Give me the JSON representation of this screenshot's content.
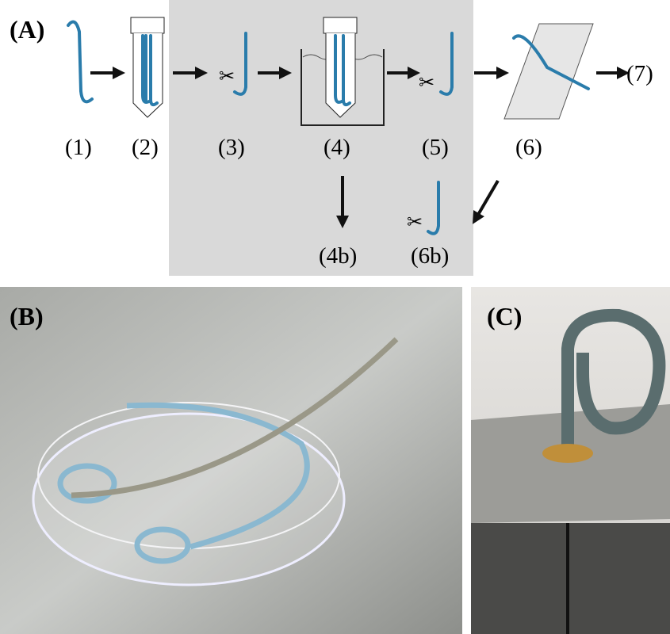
{
  "panels": {
    "a": {
      "label": "(A)",
      "steps": [
        "(1)",
        "(2)",
        "(3)",
        "(4)",
        "(5)",
        "(6)"
      ],
      "next": "(7)",
      "branches": [
        "(4b)",
        "(6b)"
      ]
    },
    "b": {
      "label": "(B)"
    },
    "c": {
      "label": "(C)"
    }
  }
}
